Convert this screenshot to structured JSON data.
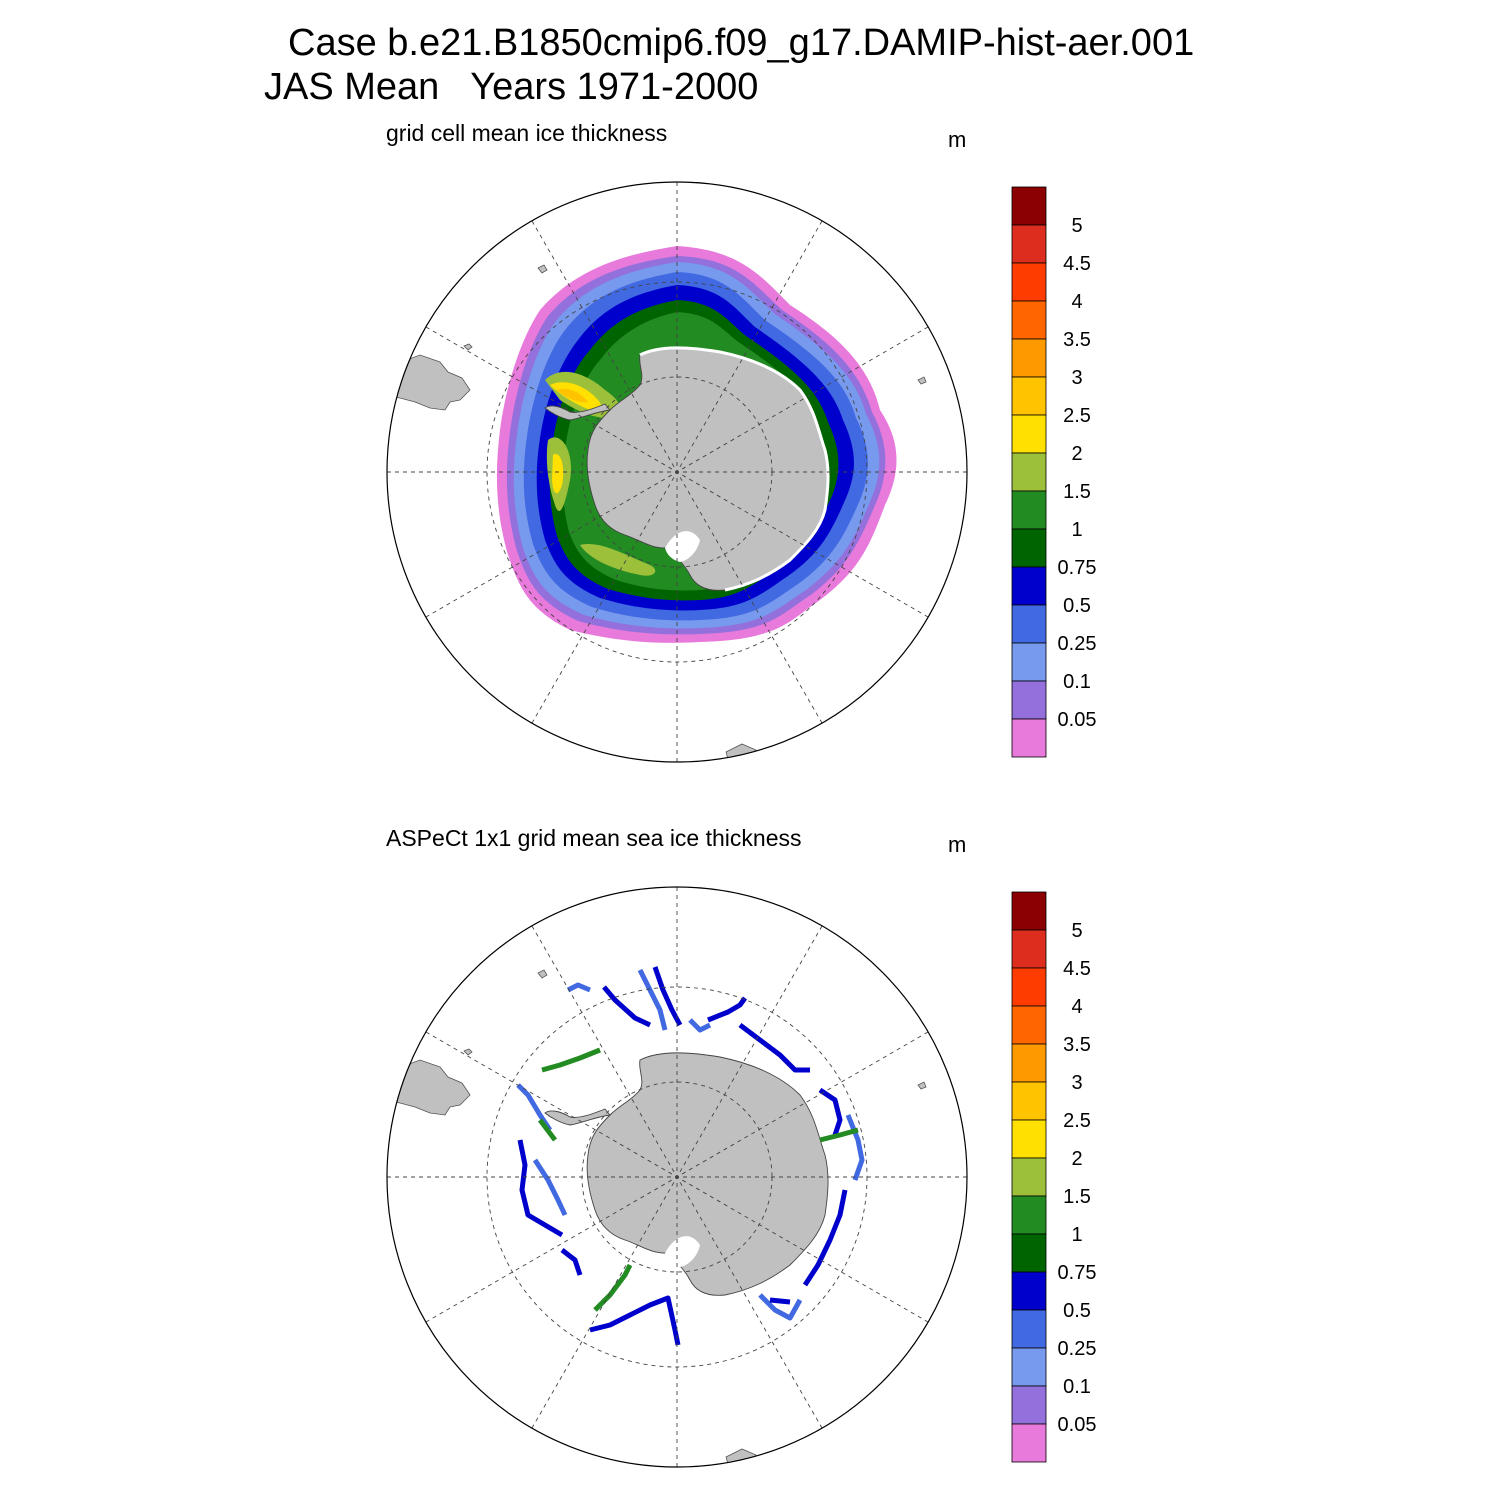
{
  "header": {
    "title_line1": "Case b.e21.B1850cmip6.f09_g17.DAMIP-hist-aer.001",
    "title_line2": "JAS Mean   Years 1971-2000"
  },
  "panels": [
    {
      "id": "model",
      "title": "grid cell mean ice thickness",
      "unit": "m"
    },
    {
      "id": "obs",
      "title": "ASPeCt 1x1 grid mean sea ice thickness",
      "unit": "m"
    }
  ],
  "colorbar": {
    "labels": [
      "5",
      "4.5",
      "4",
      "3.5",
      "3",
      "2.5",
      "2",
      "1.5",
      "1",
      "0.75",
      "0.5",
      "0.25",
      "0.1",
      "0.05"
    ],
    "colors": [
      "#8b0000",
      "#dc2d1e",
      "#ff3c00",
      "#ff6600",
      "#ff9900",
      "#ffc300",
      "#ffe000",
      "#9dc03a",
      "#228b22",
      "#006400",
      "#0000cd",
      "#4169e1",
      "#7799ee",
      "#9370db",
      "#e87adc"
    ]
  },
  "map": {
    "projection": "south polar stereographic",
    "land_color": "#c0c0c0",
    "grid": "dashed"
  }
}
